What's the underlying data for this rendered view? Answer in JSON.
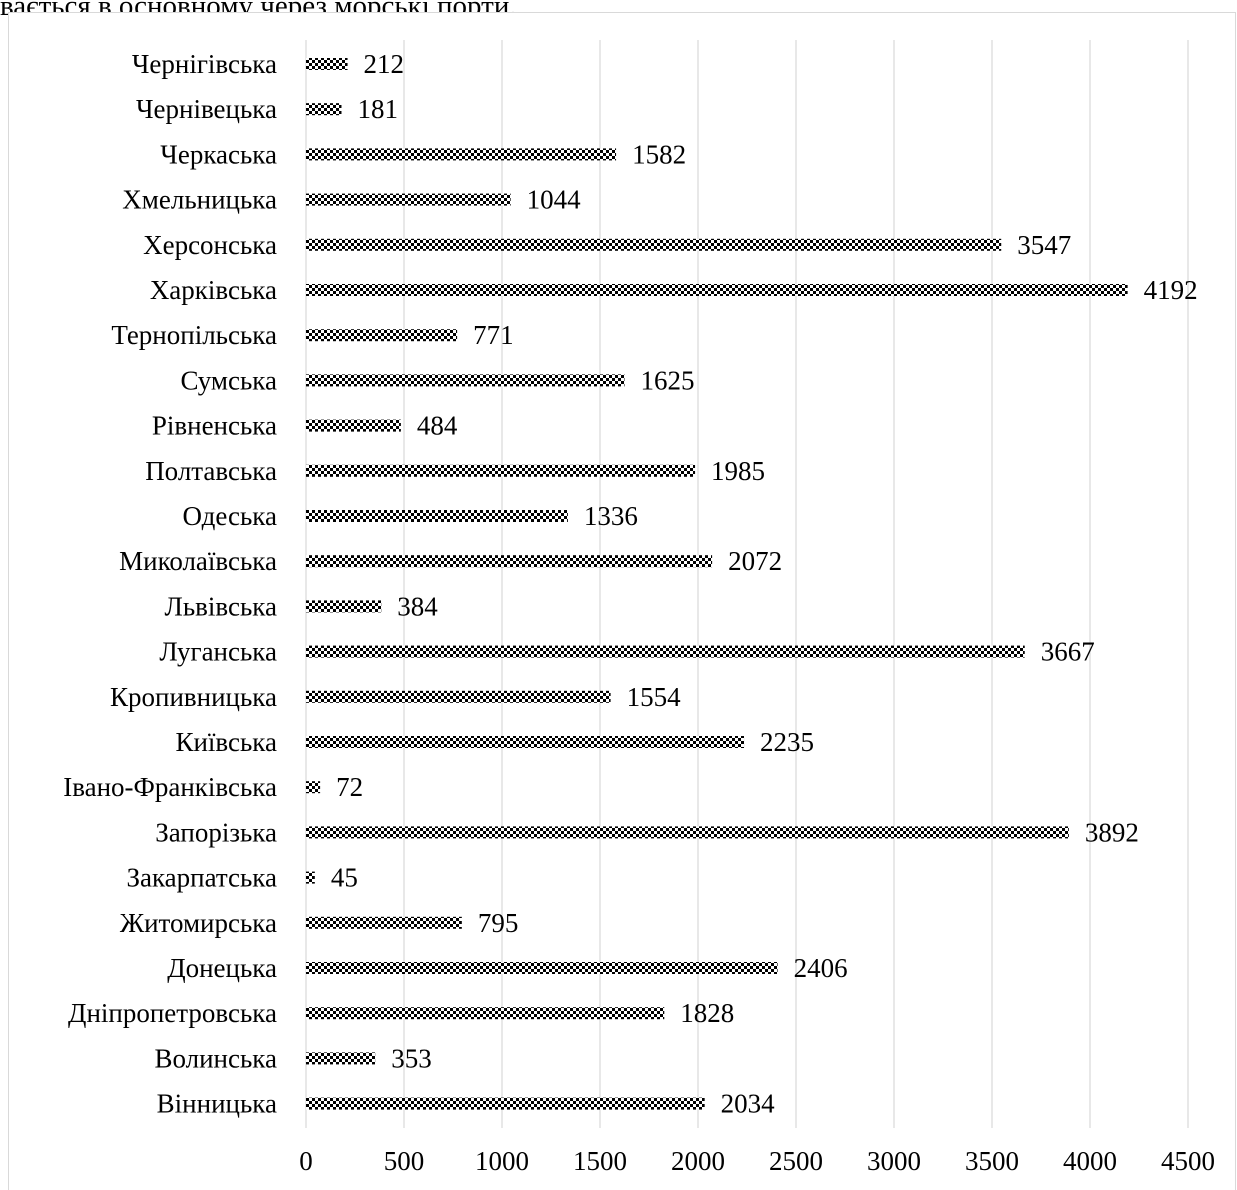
{
  "header": {
    "text": "вається в основному через морські порти."
  },
  "chart_data": {
    "type": "bar",
    "orientation": "horizontal",
    "categories": [
      "Чернігівська",
      "Чернівецька",
      "Черкаська",
      "Хмельницька",
      "Херсонська",
      "Харківська",
      "Тернопільська",
      "Сумська",
      "Рівненська",
      "Полтавська",
      "Одеська",
      "Миколаївська",
      "Львівська",
      "Луганська",
      "Кропивницька",
      "Київська",
      "Івано-Франківська",
      "Запорізька",
      "Закарпатська",
      "Житомирська",
      "Донецька",
      "Дніпропетровська",
      "Волинська",
      "Вінницька"
    ],
    "values": [
      212,
      181,
      1582,
      1044,
      3547,
      4192,
      771,
      1625,
      484,
      1985,
      1336,
      2072,
      384,
      3667,
      1554,
      2235,
      72,
      3892,
      45,
      795,
      2406,
      1828,
      353,
      2034
    ],
    "title": "",
    "xlabel": "",
    "ylabel": "",
    "xlim": [
      0,
      4500
    ],
    "xticks": [
      0,
      500,
      1000,
      1500,
      2000,
      2500,
      3000,
      3500,
      4000,
      4500
    ],
    "grid": "vertical",
    "legend": "none",
    "data_labels": true,
    "bar_fill": "checkered pattern",
    "colors": {
      "bar_dark": "#000000",
      "bar_light": "#ffffff",
      "grid": "#d9d9d9"
    }
  }
}
